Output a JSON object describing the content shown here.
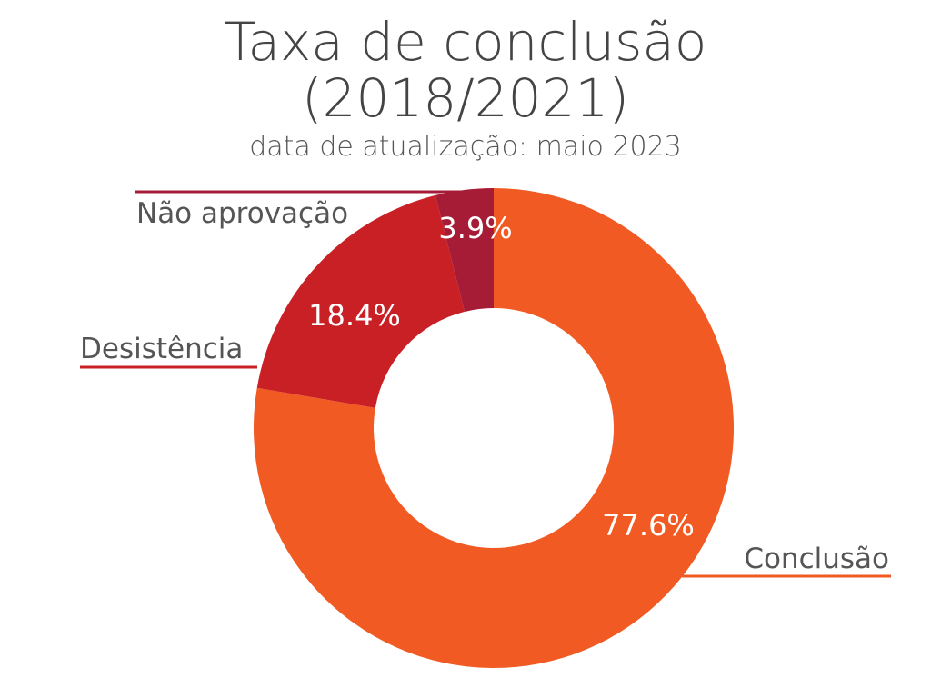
{
  "chart_data": {
    "type": "pie",
    "donut": true,
    "title_line1": "Taxa de conclusão",
    "title_line2": "(2018/2021)",
    "subtitle": "data de atualização: maio 2023",
    "categories": [
      "Conclusão",
      "Desistência",
      "Não aprovação"
    ],
    "values": [
      77.6,
      18.4,
      3.9
    ],
    "labels": [
      "77.6%",
      "18.4%",
      "3.9%"
    ],
    "colors": [
      "#F15A22",
      "#C92026",
      "#A61C37"
    ],
    "start": "top, clockwise",
    "legend": "none (leader-line labels)"
  }
}
